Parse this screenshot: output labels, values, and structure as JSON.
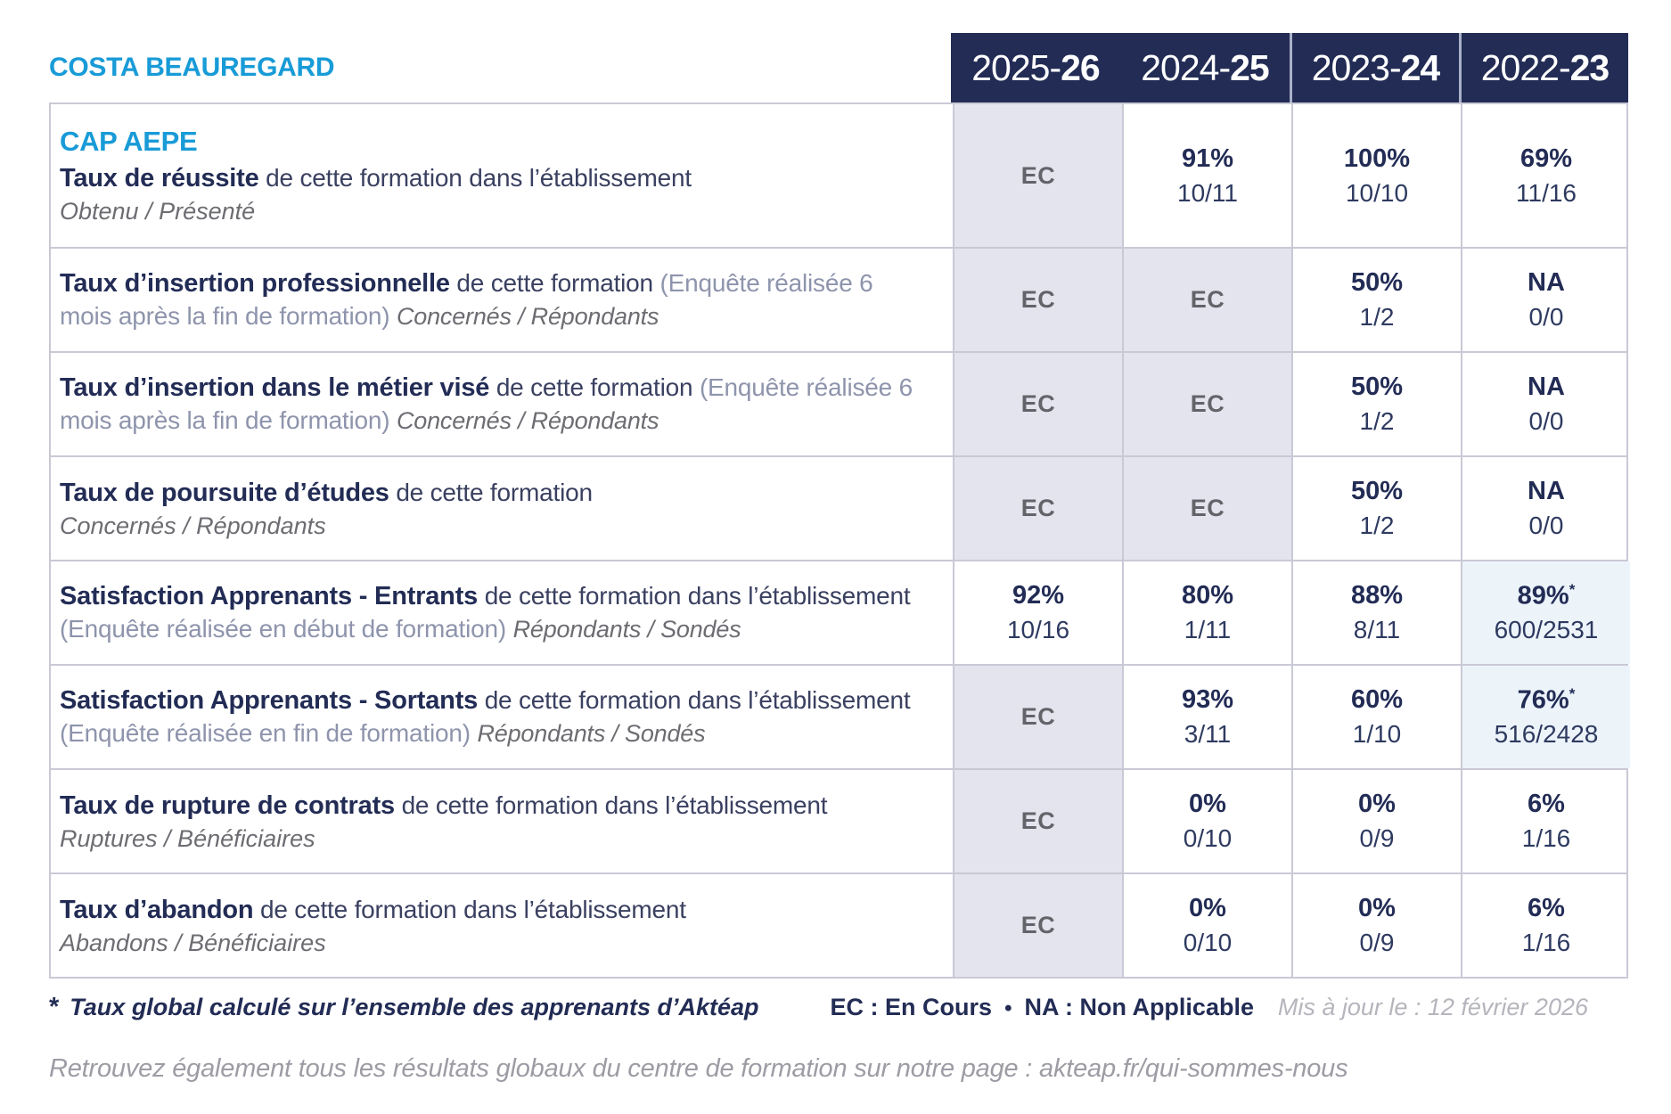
{
  "header": {
    "site_name": "COSTA BEAUREGARD",
    "years": [
      {
        "prefix": "2025-",
        "suffix": "26"
      },
      {
        "prefix": "2024-",
        "suffix": "25"
      },
      {
        "prefix": "2023-",
        "suffix": "24"
      },
      {
        "prefix": "2022-",
        "suffix": "23"
      }
    ]
  },
  "program": "CAP AEPE",
  "rows": [
    {
      "title": "Taux de réussite",
      "desc": "de cette formation dans l’établissement",
      "sub": "Obtenu / Présenté",
      "cells": [
        {
          "main": "EC"
        },
        {
          "main": "91%",
          "frac": "10/11"
        },
        {
          "main": "100%",
          "frac": "10/10"
        },
        {
          "main": "69%",
          "frac": "11/16"
        }
      ]
    },
    {
      "title": "Taux d’insertion professionnelle",
      "desc": "de cette formation",
      "note": "(Enquête réalisée 6 mois après la fin de formation)",
      "sub": "Concernés / Répondants",
      "cells": [
        {
          "main": "EC"
        },
        {
          "main": "EC"
        },
        {
          "main": "50%",
          "frac": "1/2"
        },
        {
          "main": "NA",
          "frac": "0/0"
        }
      ]
    },
    {
      "title": "Taux d’insertion dans le métier visé",
      "desc": "de cette formation",
      "note": "(Enquête réalisée 6 mois après la fin de formation)",
      "sub": "Concernés / Répondants",
      "cells": [
        {
          "main": "EC"
        },
        {
          "main": "EC"
        },
        {
          "main": "50%",
          "frac": "1/2"
        },
        {
          "main": "NA",
          "frac": "0/0"
        }
      ]
    },
    {
      "title": "Taux de poursuite d’études",
      "desc": "de cette formation",
      "sub": "Concernés / Répondants",
      "cells": [
        {
          "main": "EC"
        },
        {
          "main": "EC"
        },
        {
          "main": "50%",
          "frac": "1/2"
        },
        {
          "main": "NA",
          "frac": "0/0"
        }
      ]
    },
    {
      "title": "Satisfaction Apprenants - Entrants",
      "desc": "de cette formation dans l’établissement",
      "note": "(Enquête réalisée en début de formation)",
      "sub": "Répondants / Sondés",
      "cells": [
        {
          "main": "92%",
          "frac": "10/16"
        },
        {
          "main": "80%",
          "frac": "1/11"
        },
        {
          "main": "88%",
          "frac": "8/11"
        },
        {
          "main": "89%",
          "star": "*",
          "frac": "600/2531"
        }
      ]
    },
    {
      "title": "Satisfaction Apprenants - Sortants",
      "desc": "de cette formation dans l’établissement",
      "note": "(Enquête réalisée en fin de formation)",
      "sub": "Répondants / Sondés",
      "cells": [
        {
          "main": "EC"
        },
        {
          "main": "93%",
          "frac": "3/11"
        },
        {
          "main": "60%",
          "frac": "1/10"
        },
        {
          "main": "76%",
          "star": "*",
          "frac": "516/2428"
        }
      ]
    },
    {
      "title": "Taux de rupture de contrats",
      "desc": "de cette formation dans l’établissement",
      "sub": "Ruptures / Bénéficiaires",
      "cells": [
        {
          "main": "EC"
        },
        {
          "main": "0%",
          "frac": "0/10"
        },
        {
          "main": "0%",
          "frac": "0/9"
        },
        {
          "main": "6%",
          "frac": "1/16"
        }
      ]
    },
    {
      "title": "Taux d’abandon",
      "desc": "de cette formation dans l’établissement",
      "sub": "Abandons / Bénéficiaires",
      "cells": [
        {
          "main": "EC"
        },
        {
          "main": "0%",
          "frac": "0/10"
        },
        {
          "main": "0%",
          "frac": "0/9"
        },
        {
          "main": "6%",
          "frac": "1/16"
        }
      ]
    }
  ],
  "footer": {
    "star": "*",
    "footnote": "Taux global calculé sur l’ensemble des apprenants d’Aktéap",
    "legend_ec": "EC : En Cours",
    "legend_sep": "•",
    "legend_na": "NA : Non Applicable",
    "updated": "Mis à jour le : 12 février 2026",
    "bottom_note": "Retrouvez également tous les résultats globaux du centre de formation sur notre page : akteap.fr/qui-sommes-nous"
  },
  "colors": {
    "navy": "#222c55",
    "cyan": "#189bd7",
    "grid": "#c9c9d6",
    "ec_cell_bg": "#e4e4ee",
    "highlight_cell_bg": "#ecf4fa"
  }
}
